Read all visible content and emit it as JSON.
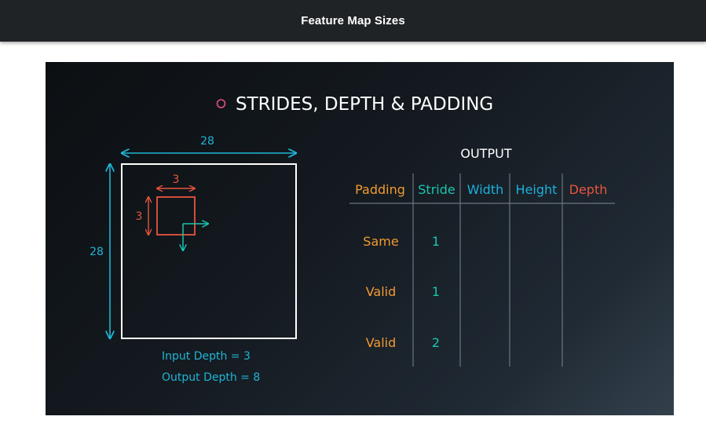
{
  "header": {
    "title": "Feature Map Sizes"
  },
  "slide": {
    "title": "STRIDES, DEPTH & PADDING",
    "colors": {
      "title_bullet": "#e24e8a",
      "title_text": "#ffffff",
      "input_box": "#ffffff",
      "arrow_cyan": "#1fb5d6",
      "filter_red": "#e8553e",
      "table_line": "#6b7680",
      "orange": "#f29a30",
      "teal": "#19c5b0",
      "blue": "#1ab0de",
      "red": "#e8553e"
    },
    "diagram": {
      "input_width_label": "28",
      "input_height_label": "28",
      "filter_width_label": "3",
      "filter_height_label": "3",
      "input_depth_text": "Input Depth = 3",
      "output_depth_text": "Output Depth = 8"
    },
    "table": {
      "caption": "OUTPUT",
      "headers": [
        "Padding",
        "Stride",
        "Width",
        "Height",
        "Depth"
      ],
      "rows": [
        {
          "padding": "Same",
          "stride": "1",
          "width": "",
          "height": "",
          "depth": ""
        },
        {
          "padding": "Valid",
          "stride": "1",
          "width": "",
          "height": "",
          "depth": ""
        },
        {
          "padding": "Valid",
          "stride": "2",
          "width": "",
          "height": "",
          "depth": ""
        }
      ]
    }
  }
}
